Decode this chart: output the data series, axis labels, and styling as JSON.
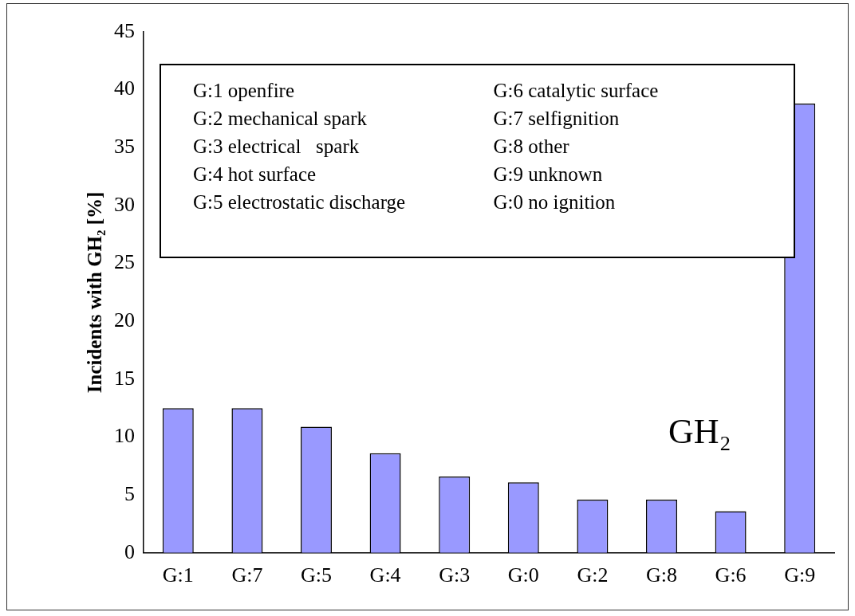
{
  "chart_data": {
    "type": "bar",
    "ylabel": "Incidents with GH₂ [%]",
    "categories": [
      "G:1",
      "G:7",
      "G:5",
      "G:4",
      "G:3",
      "G:0",
      "G:2",
      "G:8",
      "G:6",
      "G:9"
    ],
    "values": [
      12.5,
      12.5,
      10.9,
      8.6,
      6.6,
      6.1,
      4.6,
      4.6,
      3.6,
      38.8
    ],
    "color": "#9999ff",
    "ylim": [
      0,
      45
    ],
    "yticks": [
      0,
      5,
      10,
      15,
      20,
      25,
      30,
      35,
      40,
      45
    ],
    "grid": false,
    "annotations": [
      "G:1 openfire",
      "G:2 mechanical spark",
      "G:3 electrical   spark",
      "G:4 hot surface",
      "G:5 electrostatic discharge",
      "G:6 catalytic surface",
      "G:7 selfignition",
      "G:8 other",
      "G:9 unknown",
      "G:0 no ignition",
      "GH₂"
    ]
  }
}
